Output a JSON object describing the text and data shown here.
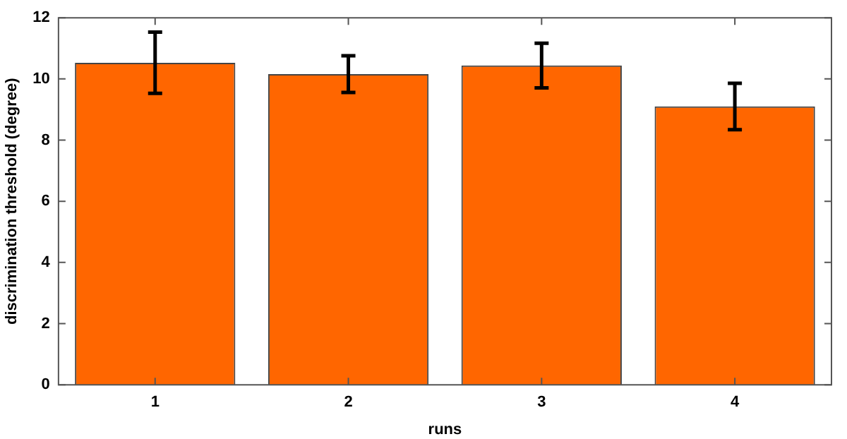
{
  "chart_data": {
    "type": "bar",
    "xlabel": "runs",
    "ylabel": "discrimination threshold (degree)",
    "categories": [
      "1",
      "2",
      "3",
      "4"
    ],
    "values": [
      10.53,
      10.16,
      10.44,
      9.1
    ],
    "errors": [
      1.0,
      0.6,
      0.73,
      0.76
    ],
    "color": "#ff6600",
    "ylim": [
      0,
      12
    ],
    "yticks": [
      0,
      2,
      4,
      6,
      8,
      10,
      12
    ],
    "grid": false,
    "legend": false
  }
}
